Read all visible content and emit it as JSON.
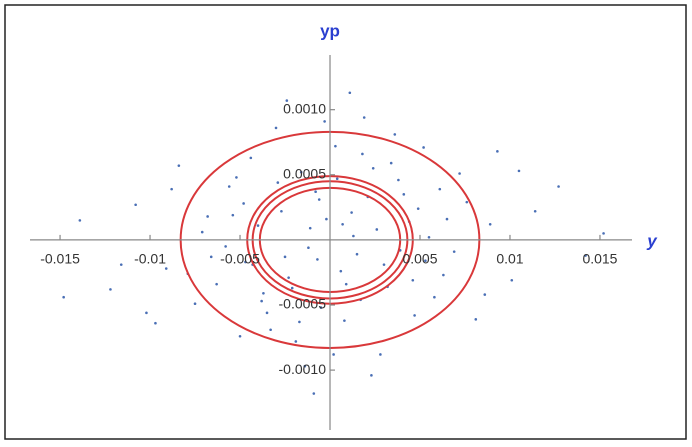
{
  "chart_data": {
    "type": "scatter",
    "x_label": "y",
    "y_label": "yp",
    "xlim": [
      -0.01667,
      0.01678
    ],
    "ylim": [
      -0.00146,
      0.00142
    ],
    "xticks": [
      -0.015,
      -0.01,
      -0.005,
      0.005,
      0.01,
      0.015
    ],
    "yticks": [
      {
        "value": -0.001,
        "label": "-0.0010"
      },
      -0.0005,
      0.0005,
      {
        "value": 0.001,
        "label": "0.0010"
      }
    ],
    "ellipse_color": "#d9383a",
    "ellipses": [
      {
        "rx": 0.0083,
        "ry": 0.00083
      },
      {
        "rx": 0.0046,
        "ry": 0.00049
      },
      {
        "rx": 0.0043,
        "ry": 0.00045
      },
      {
        "rx": 0.0039,
        "ry": 0.0004
      }
    ],
    "series": [
      {
        "color": "#4a6fb5",
        "x": [
          0.0012,
          -0.0025,
          0.0041,
          -0.0052,
          0.0008,
          -0.0011,
          0.0063,
          -0.0037,
          0.0024,
          -0.0068,
          0.0003,
          -0.0019,
          0.0089,
          -0.0091,
          0.0047,
          -0.0044,
          0.0015,
          -0.0006,
          0.0032,
          -0.0029,
          0.0072,
          -0.0075,
          0.0055,
          -0.0058,
          0.0101,
          -0.0108,
          0.0019,
          -0.0014,
          0.0036,
          -0.0033,
          0.0127,
          -0.0122,
          0.0006,
          -0.0002,
          0.0026,
          -0.0023,
          0.0049,
          -0.0047,
          0.0081,
          -0.0084,
          0.0017,
          -0.0016,
          0.0039,
          -0.004,
          0.0061,
          -0.0063,
          0.0011,
          -0.0009,
          0.0028,
          -0.003,
          0.0093,
          -0.0097,
          0.0142,
          -0.0139,
          0.0004,
          -0.0005,
          0.0021,
          -0.0021,
          0.0044,
          -0.0043,
          0.0058,
          -0.0056,
          0.0013,
          -0.0012,
          0.0034,
          -0.0035,
          0.0069,
          -0.0071,
          0.0009,
          -0.0008,
          0.0052,
          -0.005,
          0.0076,
          -0.0079,
          0.0114,
          -0.0116,
          0.0002,
          -0.0003,
          0.003,
          -0.0027,
          0.0046,
          -0.0048,
          0.0065,
          -0.0066,
          0.0018,
          -0.0017,
          0.0086,
          -0.0088,
          0.0023,
          -0.0024,
          0.0152,
          -0.0148,
          0.0007,
          -0.0007,
          0.0038,
          -0.0038,
          0.0053,
          -0.0054,
          0.0105,
          -0.0102
        ],
        "y": [
          0.00021,
          -0.00013,
          0.00035,
          0.00048,
          -0.00062,
          9e-05,
          -0.00027,
          -0.00041,
          0.00055,
          0.00018,
          0.00072,
          -0.00078,
          0.00012,
          -0.00022,
          -0.00058,
          0.00063,
          -0.00011,
          0.00031,
          -0.00036,
          0.00044,
          0.00051,
          -0.00049,
          2e-05,
          -5e-05,
          -0.00031,
          0.00027,
          0.00094,
          -0.00097,
          0.00081,
          -0.00069,
          0.00041,
          -0.00038,
          -0.00024,
          0.00016,
          8e-05,
          -0.00029,
          0.00024,
          -0.00017,
          -0.00061,
          0.00057,
          -0.00046,
          0.00052,
          -8e-05,
          0.00011,
          0.00039,
          -0.00034,
          0.00113,
          -0.00118,
          -0.00088,
          0.00086,
          0.00068,
          -0.00064,
          -0.00012,
          0.00015,
          0.00047,
          -0.00052,
          0.00033,
          -0.00037,
          0.00014,
          -0.00019,
          -0.00044,
          0.00041,
          3e-05,
          -6e-05,
          0.00059,
          -0.00056,
          -9e-05,
          6e-05,
          -0.00034,
          0.00037,
          0.00071,
          -0.00074,
          0.00029,
          -0.00026,
          0.00022,
          -0.00019,
          -0.00088,
          0.00091,
          -0.00019,
          0.00022,
          -0.00031,
          0.00028,
          0.00016,
          -0.00013,
          0.00066,
          -0.00063,
          -0.00042,
          0.00039,
          -0.00104,
          0.00107,
          5e-05,
          -0.00044,
          0.00012,
          -0.00015,
          0.00046,
          -0.00047,
          -0.00016,
          0.00019,
          0.00053,
          -0.00056
        ]
      }
    ]
  }
}
